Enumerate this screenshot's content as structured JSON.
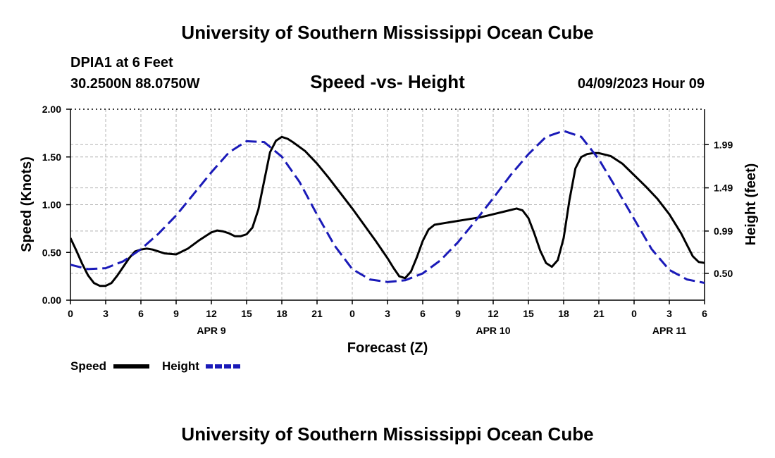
{
  "chart_data": {
    "type": "line",
    "title": "University of Southern Mississippi Ocean Cube",
    "footer_title": "University of Southern Mississippi Ocean Cube",
    "subtitle": "Speed -vs- Height",
    "station": "DPIA1 at 6 Feet",
    "coords": "30.2500N  88.0750W",
    "datetime": "04/09/2023 Hour 09",
    "xlabel": "Forecast (Z)",
    "ylabel": "Speed (Knots)",
    "y2label": "Height (feet)",
    "x_range": [
      0,
      54
    ],
    "ylim": [
      0,
      2
    ],
    "y2lim": [
      0.19,
      2.4
    ],
    "x_ticks": [
      0,
      3,
      6,
      9,
      12,
      15,
      18,
      21,
      24,
      27,
      30,
      33,
      36,
      39,
      42,
      45,
      48,
      51,
      54
    ],
    "x_tick_labels": [
      "0",
      "3",
      "6",
      "9",
      "12",
      "15",
      "18",
      "21",
      "0",
      "3",
      "6",
      "9",
      "12",
      "15",
      "18",
      "21",
      "0",
      "3",
      "6"
    ],
    "day_labels": [
      {
        "x": 12,
        "text": "APR 9"
      },
      {
        "x": 36,
        "text": "APR 10"
      },
      {
        "x": 51,
        "text": "APR 11"
      }
    ],
    "y_ticks": [
      0,
      0.5,
      1.0,
      1.5,
      2.0
    ],
    "y_tick_labels": [
      "0.00",
      "0.50",
      "1.00",
      "1.50",
      "2.00"
    ],
    "y2_ticks": [
      0.5,
      0.99,
      1.49,
      1.99
    ],
    "y2_tick_labels": [
      "0.50",
      "0.99",
      "1.49",
      "1.99"
    ],
    "grid": true,
    "series": [
      {
        "name": "Speed",
        "axis": "left",
        "color": "#000000",
        "dash": "solid",
        "points": [
          [
            0,
            0.65
          ],
          [
            0.5,
            0.52
          ],
          [
            1,
            0.38
          ],
          [
            1.5,
            0.26
          ],
          [
            2,
            0.18
          ],
          [
            2.5,
            0.15
          ],
          [
            3,
            0.15
          ],
          [
            3.5,
            0.18
          ],
          [
            4,
            0.26
          ],
          [
            4.5,
            0.35
          ],
          [
            5,
            0.44
          ],
          [
            5.5,
            0.51
          ],
          [
            6,
            0.53
          ],
          [
            6.5,
            0.54
          ],
          [
            7,
            0.53
          ],
          [
            8,
            0.49
          ],
          [
            9,
            0.48
          ],
          [
            10,
            0.54
          ],
          [
            11,
            0.63
          ],
          [
            12,
            0.71
          ],
          [
            12.5,
            0.73
          ],
          [
            13,
            0.72
          ],
          [
            13.5,
            0.7
          ],
          [
            14,
            0.67
          ],
          [
            14.5,
            0.67
          ],
          [
            15,
            0.69
          ],
          [
            15.5,
            0.76
          ],
          [
            16,
            0.95
          ],
          [
            16.5,
            1.25
          ],
          [
            17,
            1.55
          ],
          [
            17.5,
            1.67
          ],
          [
            18,
            1.71
          ],
          [
            18.5,
            1.69
          ],
          [
            19,
            1.65
          ],
          [
            20,
            1.56
          ],
          [
            21,
            1.43
          ],
          [
            22,
            1.28
          ],
          [
            23,
            1.12
          ],
          [
            24,
            0.96
          ],
          [
            25,
            0.79
          ],
          [
            26,
            0.62
          ],
          [
            27,
            0.44
          ],
          [
            27.5,
            0.34
          ],
          [
            28,
            0.25
          ],
          [
            28.5,
            0.23
          ],
          [
            29,
            0.3
          ],
          [
            29.5,
            0.45
          ],
          [
            30,
            0.62
          ],
          [
            30.5,
            0.74
          ],
          [
            31,
            0.79
          ],
          [
            32,
            0.81
          ],
          [
            33,
            0.83
          ],
          [
            34,
            0.85
          ],
          [
            35,
            0.87
          ],
          [
            36,
            0.9
          ],
          [
            37,
            0.93
          ],
          [
            38,
            0.96
          ],
          [
            38.5,
            0.94
          ],
          [
            39,
            0.86
          ],
          [
            39.5,
            0.7
          ],
          [
            40,
            0.52
          ],
          [
            40.5,
            0.39
          ],
          [
            41,
            0.35
          ],
          [
            41.5,
            0.42
          ],
          [
            42,
            0.65
          ],
          [
            42.5,
            1.05
          ],
          [
            43,
            1.38
          ],
          [
            43.5,
            1.5
          ],
          [
            44,
            1.53
          ],
          [
            44.5,
            1.54
          ],
          [
            45,
            1.54
          ],
          [
            46,
            1.51
          ],
          [
            47,
            1.43
          ],
          [
            48,
            1.31
          ],
          [
            49,
            1.19
          ],
          [
            50,
            1.06
          ],
          [
            51,
            0.9
          ],
          [
            52,
            0.7
          ],
          [
            52.5,
            0.58
          ],
          [
            53,
            0.46
          ],
          [
            53.5,
            0.4
          ],
          [
            54,
            0.39
          ],
          [
            54.5,
            0.42
          ],
          [
            55,
            0.49
          ],
          [
            55.5,
            0.58
          ],
          [
            56,
            0.68
          ],
          [
            56.5,
            0.74
          ]
        ]
      },
      {
        "name": "Height",
        "axis": "right",
        "color": "#1a1ab8",
        "dash": "dashed",
        "points": [
          [
            0,
            0.6
          ],
          [
            1.5,
            0.55
          ],
          [
            3,
            0.56
          ],
          [
            4.5,
            0.64
          ],
          [
            6,
            0.78
          ],
          [
            7.5,
            0.96
          ],
          [
            9,
            1.17
          ],
          [
            10.5,
            1.42
          ],
          [
            12,
            1.67
          ],
          [
            13.5,
            1.9
          ],
          [
            15,
            2.03
          ],
          [
            16.5,
            2.02
          ],
          [
            18,
            1.85
          ],
          [
            19.5,
            1.56
          ],
          [
            21,
            1.18
          ],
          [
            22.5,
            0.82
          ],
          [
            24,
            0.55
          ],
          [
            25.5,
            0.43
          ],
          [
            27,
            0.4
          ],
          [
            28.5,
            0.42
          ],
          [
            30,
            0.5
          ],
          [
            31.5,
            0.65
          ],
          [
            33,
            0.86
          ],
          [
            34.5,
            1.11
          ],
          [
            36,
            1.37
          ],
          [
            37.5,
            1.64
          ],
          [
            39,
            1.88
          ],
          [
            40.5,
            2.08
          ],
          [
            42,
            2.15
          ],
          [
            43.5,
            2.08
          ],
          [
            45,
            1.82
          ],
          [
            46.5,
            1.48
          ],
          [
            48,
            1.13
          ],
          [
            49.5,
            0.78
          ],
          [
            51,
            0.54
          ],
          [
            52.5,
            0.43
          ],
          [
            54,
            0.39
          ],
          [
            55.5,
            0.43
          ],
          [
            56.5,
            0.51
          ]
        ]
      }
    ]
  },
  "legend": [
    {
      "label": "Speed",
      "color": "#000000",
      "dash": "solid"
    },
    {
      "label": "Height",
      "color": "#1a1ab8",
      "dash": "dashed"
    }
  ]
}
